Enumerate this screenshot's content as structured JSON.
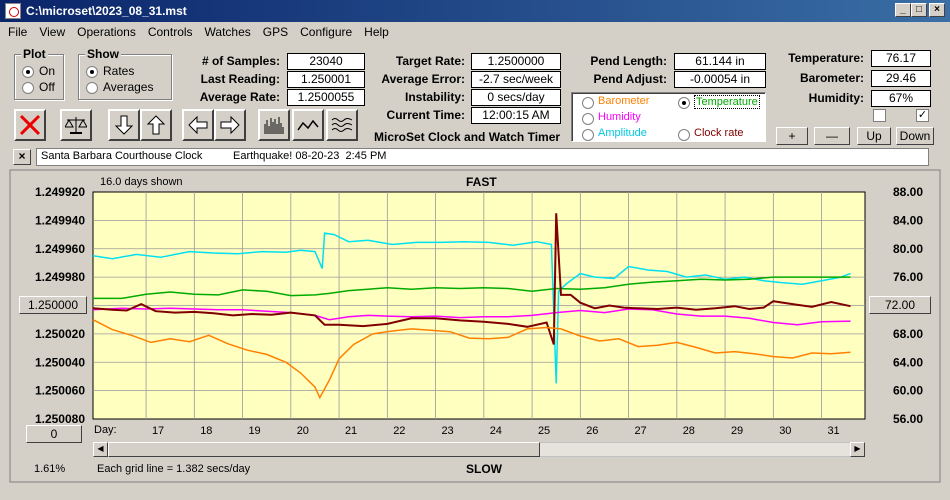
{
  "window": {
    "title": "C:\\microset\\2023_08_31.mst"
  },
  "menu": [
    "File",
    "View",
    "Operations",
    "Controls",
    "Watches",
    "GPS",
    "Configure",
    "Help"
  ],
  "plot": {
    "title": "Plot",
    "on": "On",
    "off": "Off",
    "selected": "On"
  },
  "show": {
    "title": "Show",
    "rates": "Rates",
    "averages": "Averages",
    "selected": "Rates"
  },
  "stats": {
    "samples_label": "# of Samples:",
    "samples": "23040",
    "last_label": "Last Reading:",
    "last": "1.250001",
    "avg_label": "Average Rate:",
    "avg": "1.2500055",
    "target_label": "Target Rate:",
    "target": "1.2500000",
    "avgerr_label": "Average Error:",
    "avgerr": "-2.7 sec/week",
    "instab_label": "Instability:",
    "instab": "0 secs/day",
    "curtime_label": "Current Time:",
    "curtime": "12:00:15 AM",
    "pendlen_label": "Pend Length:",
    "pendlen": "61.144 in",
    "pendadj_label": "Pend Adjust:",
    "pendadj": "-0.00054 in",
    "temp_label": "Temperature:",
    "temp": "76.17",
    "baro_label": "Barometer:",
    "baro": "29.46",
    "hum_label": "Humidity:",
    "hum": "67%"
  },
  "app_title": "MicroSet Clock and Watch Timer",
  "series_select": {
    "barometer": "Barometer",
    "temperature": "Temperature",
    "humidity": "Humidity",
    "amplitude": "Amplitude",
    "clockrate": "Clock rate",
    "selected": "Temperature"
  },
  "adjust_buttons": {
    "plus": "+",
    "minus": "—",
    "up": "Up",
    "down": "Down"
  },
  "checkboxes": {
    "left": false,
    "right": true
  },
  "note": {
    "close": "×",
    "text": "Santa Barbara Courthouse Clock          Earthquake! 08-20-23  2:45 PM"
  },
  "chart": {
    "days_shown": "16.0 days shown",
    "fast": "FAST",
    "slow": "SLOW",
    "left_button": "1.250000",
    "right_button": "72.00",
    "bottom_button": "0",
    "day_label": "Day:",
    "percent": "1.61%",
    "grid_note": "Each grid line = 1.382 secs/day"
  },
  "colors": {
    "plot_bg": "#ffffc0",
    "clock_rate": "#800000",
    "temperature": "#00aa00",
    "barometer": "#ff8000",
    "humidity": "#ff00ff",
    "amplitude": "#00e0f0"
  },
  "chart_data": {
    "type": "line",
    "x_label": "Day:",
    "x_ticks": [
      17,
      18,
      19,
      20,
      21,
      22,
      23,
      24,
      25,
      26,
      27,
      28,
      29,
      30,
      31
    ],
    "xlim": [
      15.9,
      31.9
    ],
    "y_left_ticks": [
      "1.249920",
      "1.249940",
      "1.249960",
      "1.249980",
      "1.250000",
      "1.250020",
      "1.250040",
      "1.250060",
      "1.250080"
    ],
    "y_right_ticks": [
      "88.00",
      "84.00",
      "80.00",
      "76.00",
      "72.00",
      "68.00",
      "64.00",
      "60.00",
      "56.00"
    ],
    "y_right_range": [
      56,
      88
    ],
    "grid": true,
    "series": [
      {
        "key": "amplitude",
        "points": [
          [
            15.9,
            79.0
          ],
          [
            16.3,
            78.6
          ],
          [
            16.8,
            79.2
          ],
          [
            17.3,
            78.8
          ],
          [
            17.9,
            79.6
          ],
          [
            18.4,
            79.4
          ],
          [
            18.9,
            79.3
          ],
          [
            19.4,
            79.6
          ],
          [
            19.9,
            79.5
          ],
          [
            20.2,
            79.8
          ],
          [
            20.5,
            79.6
          ],
          [
            20.65,
            77.2
          ],
          [
            20.7,
            82.2
          ],
          [
            20.9,
            82.0
          ],
          [
            21.2,
            81.0
          ],
          [
            21.6,
            81.2
          ],
          [
            22.1,
            80.6
          ],
          [
            22.6,
            80.9
          ],
          [
            23.1,
            80.9
          ],
          [
            23.6,
            81.0
          ],
          [
            24.1,
            80.9
          ],
          [
            24.6,
            80.5
          ],
          [
            25.1,
            81.0
          ],
          [
            25.4,
            80.6
          ],
          [
            25.5,
            61.0
          ],
          [
            25.55,
            74.0
          ],
          [
            25.7,
            75.0
          ],
          [
            26.0,
            76.5
          ],
          [
            26.3,
            76.0
          ],
          [
            26.7,
            75.8
          ],
          [
            27.0,
            77.5
          ],
          [
            27.4,
            77.0
          ],
          [
            27.8,
            76.8
          ],
          [
            28.2,
            76.0
          ],
          [
            28.6,
            76.3
          ],
          [
            29.0,
            75.7
          ],
          [
            29.4,
            76.0
          ],
          [
            29.8,
            75.5
          ],
          [
            30.2,
            75.2
          ],
          [
            30.6,
            75.0
          ],
          [
            31.0,
            75.5
          ],
          [
            31.4,
            76.0
          ],
          [
            31.6,
            76.5
          ]
        ]
      },
      {
        "key": "temperature",
        "points": [
          [
            15.9,
            73.0
          ],
          [
            16.5,
            73.0
          ],
          [
            17.0,
            73.6
          ],
          [
            17.5,
            73.9
          ],
          [
            18.0,
            73.6
          ],
          [
            18.5,
            73.5
          ],
          [
            19.0,
            74.2
          ],
          [
            19.5,
            74.0
          ],
          [
            20.0,
            73.4
          ],
          [
            20.5,
            73.5
          ],
          [
            20.8,
            73.7
          ],
          [
            21.2,
            74.1
          ],
          [
            21.6,
            74.3
          ],
          [
            22.0,
            74.5
          ],
          [
            22.5,
            74.3
          ],
          [
            23.0,
            74.5
          ],
          [
            23.5,
            74.4
          ],
          [
            24.0,
            74.5
          ],
          [
            24.5,
            74.4
          ],
          [
            25.0,
            74.0
          ],
          [
            25.5,
            74.4
          ],
          [
            26.0,
            74.3
          ],
          [
            26.5,
            74.5
          ],
          [
            27.0,
            75.0
          ],
          [
            27.5,
            75.3
          ],
          [
            28.0,
            75.5
          ],
          [
            28.5,
            75.7
          ],
          [
            29.0,
            75.6
          ],
          [
            29.5,
            75.7
          ],
          [
            30.0,
            76.0
          ],
          [
            30.5,
            76.0
          ],
          [
            31.0,
            76.0
          ],
          [
            31.6,
            76.0
          ]
        ]
      },
      {
        "key": "humidity",
        "points": [
          [
            15.9,
            71.4
          ],
          [
            16.5,
            71.6
          ],
          [
            17.0,
            71.5
          ],
          [
            17.5,
            71.6
          ],
          [
            18.0,
            71.5
          ],
          [
            18.5,
            71.4
          ],
          [
            19.0,
            71.4
          ],
          [
            19.5,
            71.2
          ],
          [
            20.0,
            71.0
          ],
          [
            20.5,
            70.6
          ],
          [
            20.8,
            70.0
          ],
          [
            21.2,
            70.4
          ],
          [
            21.6,
            70.6
          ],
          [
            22.0,
            70.5
          ],
          [
            22.5,
            70.4
          ],
          [
            23.0,
            70.5
          ],
          [
            23.5,
            70.3
          ],
          [
            24.0,
            70.4
          ],
          [
            24.5,
            70.4
          ],
          [
            25.0,
            70.6
          ],
          [
            25.5,
            71.0
          ],
          [
            26.0,
            71.3
          ],
          [
            26.5,
            71.0
          ],
          [
            27.0,
            71.5
          ],
          [
            27.5,
            71.4
          ],
          [
            28.0,
            70.8
          ],
          [
            28.5,
            70.5
          ],
          [
            29.0,
            70.5
          ],
          [
            29.5,
            70.2
          ],
          [
            30.0,
            69.6
          ],
          [
            30.5,
            69.3
          ],
          [
            31.0,
            69.7
          ],
          [
            31.6,
            69.8
          ]
        ]
      },
      {
        "key": "clock_rate",
        "points": [
          [
            15.9,
            71.6
          ],
          [
            16.3,
            71.4
          ],
          [
            16.6,
            71.3
          ],
          [
            16.9,
            72.2
          ],
          [
            17.2,
            71.2
          ],
          [
            17.6,
            71.0
          ],
          [
            18.0,
            71.1
          ],
          [
            18.4,
            70.9
          ],
          [
            18.8,
            70.6
          ],
          [
            19.2,
            70.8
          ],
          [
            19.6,
            70.7
          ],
          [
            20.0,
            71.0
          ],
          [
            20.5,
            70.6
          ],
          [
            20.7,
            69.3
          ],
          [
            21.0,
            69.3
          ],
          [
            21.5,
            69.1
          ],
          [
            22.0,
            69.4
          ],
          [
            22.5,
            70.2
          ],
          [
            23.0,
            70.2
          ],
          [
            23.5,
            69.9
          ],
          [
            24.0,
            69.7
          ],
          [
            24.5,
            69.4
          ],
          [
            24.9,
            69.0
          ],
          [
            25.3,
            69.6
          ],
          [
            25.45,
            66.5
          ],
          [
            25.5,
            85.0
          ],
          [
            25.6,
            73.5
          ],
          [
            25.8,
            73.5
          ],
          [
            26.0,
            72.4
          ],
          [
            26.3,
            71.6
          ],
          [
            26.6,
            72.0
          ],
          [
            26.9,
            71.7
          ],
          [
            27.2,
            71.6
          ],
          [
            27.6,
            71.5
          ],
          [
            28.0,
            71.7
          ],
          [
            28.4,
            71.4
          ],
          [
            28.8,
            71.6
          ],
          [
            29.2,
            71.9
          ],
          [
            29.5,
            71.5
          ],
          [
            29.8,
            71.7
          ],
          [
            30.0,
            72.6
          ],
          [
            30.4,
            72.2
          ],
          [
            30.8,
            71.8
          ],
          [
            31.2,
            72.5
          ],
          [
            31.6,
            71.9
          ]
        ]
      },
      {
        "key": "barometer",
        "points": [
          [
            15.9,
            70.0
          ],
          [
            16.3,
            68.6
          ],
          [
            16.7,
            67.8
          ],
          [
            17.1,
            66.8
          ],
          [
            17.5,
            67.3
          ],
          [
            17.9,
            66.9
          ],
          [
            18.3,
            67.8
          ],
          [
            18.7,
            66.6
          ],
          [
            19.1,
            65.7
          ],
          [
            19.5,
            65.1
          ],
          [
            19.9,
            64.0
          ],
          [
            20.2,
            62.5
          ],
          [
            20.5,
            60.5
          ],
          [
            20.6,
            59.0
          ],
          [
            20.8,
            61.5
          ],
          [
            21.0,
            64.5
          ],
          [
            21.3,
            66.5
          ],
          [
            21.7,
            68.0
          ],
          [
            22.1,
            68.4
          ],
          [
            22.5,
            68.7
          ],
          [
            22.9,
            68.5
          ],
          [
            23.3,
            68.3
          ],
          [
            23.7,
            67.4
          ],
          [
            24.1,
            67.3
          ],
          [
            24.5,
            67.5
          ],
          [
            24.9,
            68.7
          ],
          [
            25.3,
            68.9
          ],
          [
            25.6,
            68.7
          ],
          [
            26.0,
            67.7
          ],
          [
            26.4,
            67.0
          ],
          [
            26.8,
            67.3
          ],
          [
            27.2,
            66.2
          ],
          [
            27.6,
            66.4
          ],
          [
            28.0,
            66.8
          ],
          [
            28.4,
            66.1
          ],
          [
            28.8,
            65.3
          ],
          [
            29.2,
            65.5
          ],
          [
            29.6,
            65.2
          ],
          [
            30.0,
            64.8
          ],
          [
            30.4,
            64.6
          ],
          [
            30.8,
            65.3
          ],
          [
            31.2,
            65.2
          ],
          [
            31.6,
            65.4
          ]
        ]
      }
    ]
  }
}
